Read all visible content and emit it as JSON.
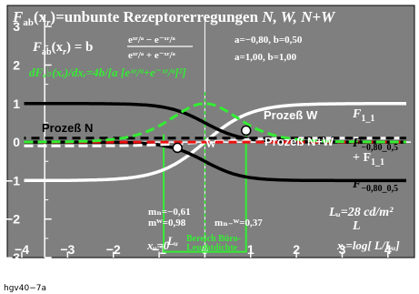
{
  "figure": {
    "title_prefix": "F",
    "title_sub": "ab",
    "title_arg": "(x",
    "title_arg_sub": "r",
    "title_rest": ")=unbunte Rezeptorerregungen",
    "title_vars": "N, W, N+W",
    "formula_lhs": "F",
    "formula_lhs_sub": "ab",
    "formula_lhs_arg": "(x",
    "formula_lhs_arg_sub": "r",
    "formula_lhs_end": ") = b",
    "formula_num": "eˣʳ/ᵃ − e⁻ˣʳ/ᵃ",
    "formula_den": "eˣʳ/ᵃ + e⁻ˣʳ/ᵃ",
    "params_1": "a=−0,80, b=0,50",
    "params_2": "a=1,00, b=1,00",
    "derivative_label": "dFₐ♭(xᵣ)/dxᵣ=4b/[a [eˣʳ/ᵃ+e⁻ˣʳ/ᵃ]²]",
    "curve_labels": {
      "prozess_n": "Prozeß N",
      "prozess_w": "Prozeß W",
      "prozess_nw": "Prozeß N+W",
      "f11_top": "F",
      "f11_top_sub": "1_1",
      "f080_upper": "F",
      "f080_upper_sub": "−0,80_0,5",
      "f11_plus": "+ F",
      "f11_plus_sub": "1_1",
      "f080_lower": "F",
      "f080_lower_sub": "−0,80_0,5",
      "point_w": "W"
    },
    "annotations": {
      "m_n": "mₙ=−0,61",
      "m_w": "mᵂ=0,98",
      "m_nw": "mₙ₋ᵂ=0,37",
      "lu_value": "Lᵤ=28 cd/m²",
      "lu_axis": "L",
      "lu_center": "Lᵤ",
      "bereich_1": "Bereich Büro-",
      "bereich_2": "Leuchtdichte",
      "x_axis_label": "xᵣ=log[ L/Lᵤ]",
      "x_zero_label": "xᵤ=0"
    },
    "footer": "hgv40−7a"
  },
  "chart_data": {
    "type": "line",
    "title": "Fab(xr)=unbunte Rezeptorerregungen N, W, N+W",
    "xlabel": "xr=log[L/Lu]",
    "ylabel": "",
    "xlim": [
      -4,
      4.5
    ],
    "ylim": [
      -3,
      3.5
    ],
    "x_ticks": [
      "−4",
      "−3",
      "−2",
      "−1",
      "0",
      "1",
      "2",
      "3",
      "4"
    ],
    "y_ticks": [
      "3",
      "2",
      "1",
      "0",
      "−1",
      "−2",
      "−3"
    ],
    "x_tick_values": [
      -4,
      -3,
      -2,
      -1,
      0,
      1,
      2,
      3,
      4
    ],
    "y_tick_values": [
      3,
      2,
      1,
      0,
      -1,
      -2,
      -3
    ],
    "grid": false,
    "series": [
      {
        "name": "F1_1",
        "color": "#ffffff",
        "style": "solid",
        "a": 1.0,
        "b": 1.0,
        "offset": 0
      },
      {
        "name": "F−0,80_0,5",
        "color": "#000000",
        "style": "solid",
        "a": -0.8,
        "b": 0.5,
        "offset": 0.5
      },
      {
        "name": "F−0,80_0,5",
        "color": "#000000",
        "style": "solid",
        "a": -0.8,
        "b": 0.5,
        "offset": -0.5
      },
      {
        "name": "F−0,80_0,5 + F1_1",
        "color": "#ffffff",
        "style": "dashed",
        "a": 1.0,
        "b": 1.0,
        "offset": 0,
        "sum_with": {
          "a": -0.8,
          "b": 0.5
        }
      },
      {
        "name": "",
        "color": "#ee1111",
        "style": "dashed",
        "constant": 0
      },
      {
        "name": "",
        "color": "#000000",
        "style": "dashed",
        "constant": 0.1
      },
      {
        "name": "dFab(xr)/dxr",
        "color": "#33ee33",
        "style": "dashed",
        "a": 1.0,
        "b": 1.0,
        "derivative": true
      }
    ],
    "points": [
      {
        "label": "W",
        "x": 0.9,
        "y": 0.3
      },
      {
        "label": "",
        "x": -0.6,
        "y": -0.15
      }
    ],
    "slopes": {
      "m_N": -0.61,
      "m_W": 0.98,
      "m_NW": 0.37
    },
    "Lu": "28 cd/m²",
    "band": {
      "label": "Bereich Büro-Leuchtdichte",
      "x": [
        -0.9,
        0.9
      ]
    }
  }
}
